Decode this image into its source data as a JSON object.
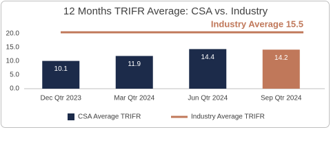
{
  "chart_data": {
    "type": "bar",
    "title": "12 Months TRIFR Average: CSA vs. Industry",
    "categories": [
      "Dec Qtr 2023",
      "Mar Qtr 2024",
      "Jun Qtr 2024",
      "Sep Qtr 2024"
    ],
    "series": [
      {
        "name": "CSA Average TRIFR",
        "color": "#1c2b4a",
        "values": [
          10.1,
          11.9,
          14.4,
          14.2
        ],
        "bar_colors": [
          "#1c2b4a",
          "#1c2b4a",
          "#1c2b4a",
          "#c0785a"
        ]
      }
    ],
    "reference": {
      "name": "Industry Average TRIFR",
      "label": "Industry Average 15.5",
      "color": "#c0785a"
    },
    "ylim": [
      0,
      20
    ],
    "yticks": [
      {
        "value": 0,
        "label": "0.0"
      },
      {
        "value": 5,
        "label": "5.0"
      },
      {
        "value": 10,
        "label": "10.0"
      },
      {
        "value": 15,
        "label": "15.0"
      },
      {
        "value": 20,
        "label": "20.0"
      }
    ],
    "grid": false
  }
}
